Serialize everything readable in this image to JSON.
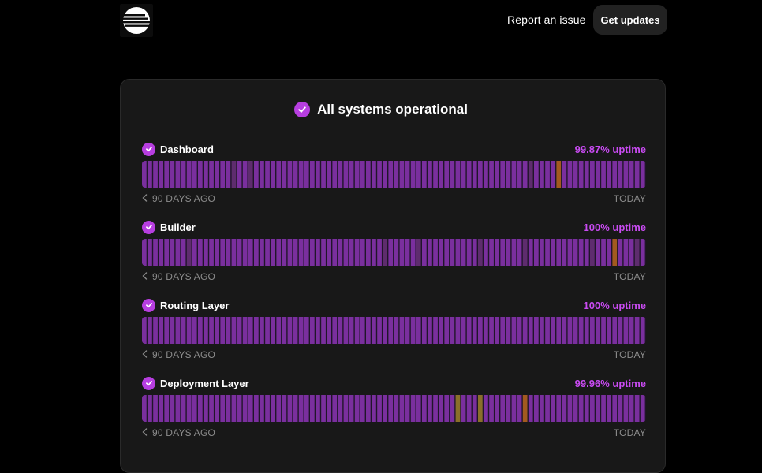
{
  "header": {
    "report_label": "Report an issue",
    "updates_label": "Get updates"
  },
  "status": {
    "headline": "All systems operational"
  },
  "colors": {
    "accent": "#b73ee0",
    "uptime_text": "#c94bf2",
    "bar_ok": "#7a2f9e",
    "bar_minor": "#8a6f2a",
    "bar_warn": "#a35a1f",
    "bar_dim": "#5e2c6e"
  },
  "services": [
    {
      "name": "Dashboard",
      "uptime": "99.87% uptime",
      "days": 90,
      "incidents": [
        {
          "day": 16,
          "level": "dim"
        },
        {
          "day": 19,
          "level": "dim"
        },
        {
          "day": 69,
          "level": "dim"
        },
        {
          "day": 74,
          "level": "warn"
        }
      ],
      "start_label": "90 DAYS AGO",
      "end_label": "TODAY"
    },
    {
      "name": "Builder",
      "uptime": "100% uptime",
      "days": 90,
      "incidents": [
        {
          "day": 8,
          "level": "dim"
        },
        {
          "day": 43,
          "level": "dim"
        },
        {
          "day": 49,
          "level": "dim"
        },
        {
          "day": 60,
          "level": "dim"
        },
        {
          "day": 68,
          "level": "dim"
        },
        {
          "day": 80,
          "level": "dim"
        },
        {
          "day": 84,
          "level": "warn"
        },
        {
          "day": 88,
          "level": "dim"
        }
      ],
      "start_label": "90 DAYS AGO",
      "end_label": "TODAY"
    },
    {
      "name": "Routing Layer",
      "uptime": "100% uptime",
      "days": 90,
      "incidents": [],
      "start_label": "90 DAYS AGO",
      "end_label": "TODAY"
    },
    {
      "name": "Deployment Layer",
      "uptime": "99.96% uptime",
      "days": 90,
      "incidents": [
        {
          "day": 56,
          "level": "minor"
        },
        {
          "day": 60,
          "level": "minor"
        },
        {
          "day": 68,
          "level": "warn"
        }
      ],
      "start_label": "90 DAYS AGO",
      "end_label": "TODAY"
    }
  ]
}
